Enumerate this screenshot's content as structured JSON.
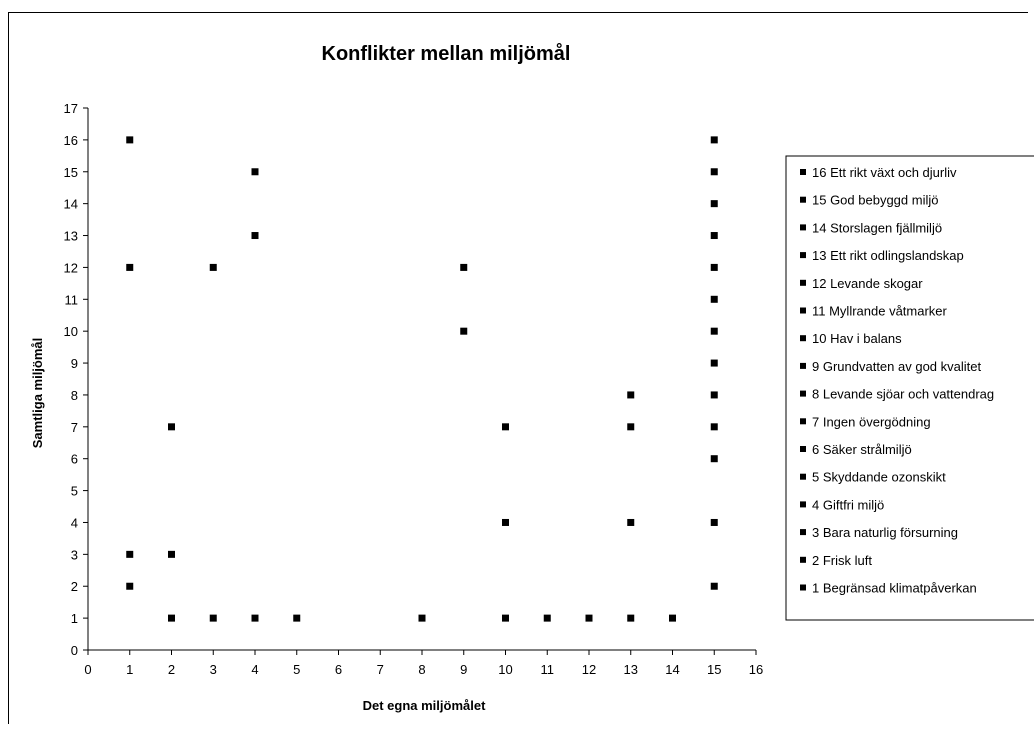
{
  "chart_data": {
    "type": "scatter",
    "title": "Konflikter mellan miljömål",
    "xlabel": "Det egna miljömålet",
    "ylabel": "Samtliga miljömål",
    "xlim": [
      0,
      16
    ],
    "ylim": [
      0,
      17
    ],
    "xticks": [
      "0",
      "1",
      "2",
      "3",
      "4",
      "5",
      "6",
      "7",
      "8",
      "9",
      "10",
      "11",
      "12",
      "13",
      "14",
      "15",
      "16"
    ],
    "yticks": [
      "0",
      "1",
      "2",
      "3",
      "4",
      "5",
      "6",
      "7",
      "8",
      "9",
      "10",
      "11",
      "12",
      "13",
      "14",
      "15",
      "16",
      "17"
    ],
    "grid": false,
    "legend_position": "right",
    "marker_color": "#000000",
    "points": [
      {
        "x": 1,
        "y": 16
      },
      {
        "x": 1,
        "y": 12
      },
      {
        "x": 1,
        "y": 3
      },
      {
        "x": 1,
        "y": 2
      },
      {
        "x": 2,
        "y": 7
      },
      {
        "x": 2,
        "y": 3
      },
      {
        "x": 2,
        "y": 1
      },
      {
        "x": 3,
        "y": 12
      },
      {
        "x": 3,
        "y": 1
      },
      {
        "x": 4,
        "y": 15
      },
      {
        "x": 4,
        "y": 13
      },
      {
        "x": 4,
        "y": 1
      },
      {
        "x": 5,
        "y": 1
      },
      {
        "x": 8,
        "y": 1
      },
      {
        "x": 9,
        "y": 12
      },
      {
        "x": 9,
        "y": 10
      },
      {
        "x": 10,
        "y": 7
      },
      {
        "x": 10,
        "y": 4
      },
      {
        "x": 10,
        "y": 1
      },
      {
        "x": 11,
        "y": 1
      },
      {
        "x": 12,
        "y": 1
      },
      {
        "x": 13,
        "y": 8
      },
      {
        "x": 13,
        "y": 7
      },
      {
        "x": 13,
        "y": 4
      },
      {
        "x": 13,
        "y": 1
      },
      {
        "x": 14,
        "y": 1
      },
      {
        "x": 15,
        "y": 16
      },
      {
        "x": 15,
        "y": 15
      },
      {
        "x": 15,
        "y": 14
      },
      {
        "x": 15,
        "y": 13
      },
      {
        "x": 15,
        "y": 12
      },
      {
        "x": 15,
        "y": 11
      },
      {
        "x": 15,
        "y": 10
      },
      {
        "x": 15,
        "y": 9
      },
      {
        "x": 15,
        "y": 8
      },
      {
        "x": 15,
        "y": 7
      },
      {
        "x": 15,
        "y": 6
      },
      {
        "x": 15,
        "y": 4
      },
      {
        "x": 15,
        "y": 2
      }
    ],
    "legend": [
      "16 Ett rikt växt och djurliv",
      "15 God bebyggd miljö",
      "14 Storslagen fjällmiljö",
      "13 Ett rikt odlingslandskap",
      "12 Levande skogar",
      "11 Myllrande våtmarker",
      "10 Hav i balans",
      "9 Grundvatten av god kvalitet",
      "8 Levande sjöar och vattendrag",
      "7 Ingen övergödning",
      "6 Säker strålmiljö",
      "5 Skyddande ozonskikt",
      "4 Giftfri miljö",
      "3 Bara naturlig försurning",
      "2 Frisk luft",
      "1 Begränsad klimatpåverkan"
    ]
  }
}
